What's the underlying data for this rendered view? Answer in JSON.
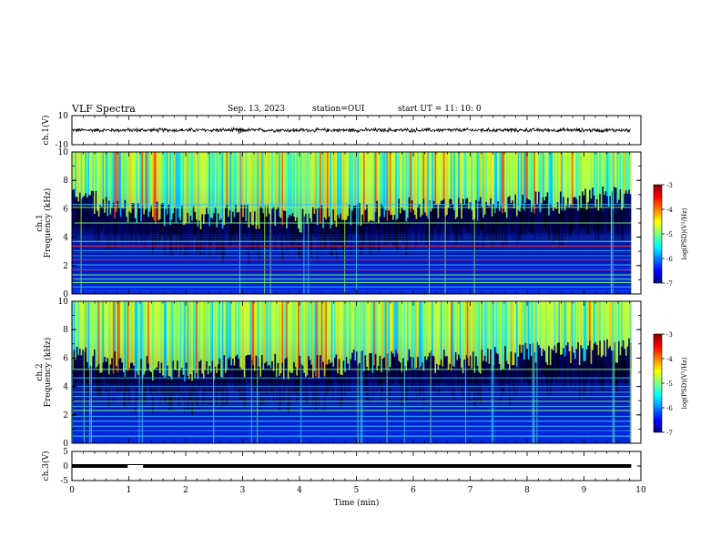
{
  "header": {
    "title": "VLF Spectra",
    "date": "Sep. 13, 2023",
    "station": "station=OUI",
    "start": "start UT =  11: 10: 0"
  },
  "chart_data": [
    {
      "type": "line",
      "id": "ch1-waveform",
      "ylabel": "ch.1(V)",
      "ylim": [
        -10,
        10
      ],
      "ytick_labels": [
        "10",
        "-10"
      ],
      "xlim": [
        0,
        10
      ],
      "data_end_min": 9.83,
      "level": 0,
      "spread": 1.0,
      "spikes": [
        {
          "t": 2.94,
          "depth": -2.6
        },
        {
          "t": 2.97,
          "depth": -1.8
        },
        {
          "t": 3.9,
          "depth": -1.4
        },
        {
          "t": 7.2,
          "depth": -1.6
        },
        {
          "t": 7.72,
          "depth": -1.4
        }
      ]
    },
    {
      "type": "heatmap",
      "id": "ch1-spectrogram",
      "ylabel": "Frequency (kHz)",
      "channel_label": "ch.1",
      "xlim": [
        0,
        10
      ],
      "ylim": [
        0,
        10
      ],
      "ytick_labels": [
        "0",
        "2",
        "4",
        "6",
        "8",
        "10"
      ],
      "data_end_min": 9.83,
      "colorbar": {
        "label": "log(PSD)(V²/Hz)",
        "range": [
          -7,
          -3
        ],
        "tick_labels": [
          "-3",
          "-4",
          "-5",
          "-6",
          "-7"
        ]
      },
      "noise_floor_profile": [
        {
          "t": 0.0,
          "khz": 6.8
        },
        {
          "t": 0.8,
          "khz": 6.0
        },
        {
          "t": 1.5,
          "khz": 5.6
        },
        {
          "t": 2.0,
          "khz": 5.3
        },
        {
          "t": 3.0,
          "khz": 5.5
        },
        {
          "t": 4.0,
          "khz": 5.2
        },
        {
          "t": 5.0,
          "khz": 5.6
        },
        {
          "t": 6.0,
          "khz": 6.0
        },
        {
          "t": 7.0,
          "khz": 5.9
        },
        {
          "t": 8.0,
          "khz": 6.3
        },
        {
          "t": 9.0,
          "khz": 6.6
        },
        {
          "t": 9.83,
          "khz": 6.8
        }
      ],
      "tone_lines_khz": [
        0.5,
        0.8,
        1.05,
        1.35,
        1.7,
        2.05,
        2.4,
        2.7,
        3.05,
        3.35,
        3.7,
        5.0,
        6.1,
        6.3
      ]
    },
    {
      "type": "heatmap",
      "id": "ch2-spectrogram",
      "ylabel": "Frequency (kHz)",
      "channel_label": "ch.2",
      "xlim": [
        0,
        10
      ],
      "ylim": [
        0,
        10
      ],
      "ytick_labels": [
        "0",
        "2",
        "4",
        "6",
        "8",
        "10"
      ],
      "data_end_min": 9.83,
      "colorbar": {
        "label": "log(PSD)(V²/Hz)",
        "range": [
          -7,
          -3
        ],
        "tick_labels": [
          "-3",
          "-4",
          "-5",
          "-6",
          "-7"
        ]
      },
      "noise_floor_profile": [
        {
          "t": 0.0,
          "khz": 6.0
        },
        {
          "t": 1.0,
          "khz": 5.4
        },
        {
          "t": 2.0,
          "khz": 5.2
        },
        {
          "t": 3.0,
          "khz": 5.5
        },
        {
          "t": 4.0,
          "khz": 5.3
        },
        {
          "t": 5.0,
          "khz": 5.8
        },
        {
          "t": 6.0,
          "khz": 5.9
        },
        {
          "t": 7.0,
          "khz": 5.7
        },
        {
          "t": 8.0,
          "khz": 6.2
        },
        {
          "t": 9.0,
          "khz": 6.4
        },
        {
          "t": 9.83,
          "khz": 6.6
        }
      ],
      "tone_lines_khz": [
        0.5,
        0.9,
        1.2,
        1.55,
        1.9,
        2.3,
        2.6,
        2.95,
        3.3,
        3.6,
        4.0,
        4.6,
        5.2
      ]
    },
    {
      "type": "line",
      "id": "ch3-waveform",
      "ylabel": "ch.3(V)",
      "ylim": [
        -5,
        5
      ],
      "ytick_labels": [
        "5",
        "0",
        "-5"
      ],
      "xlim": [
        0,
        10
      ],
      "data_end_min": 9.83,
      "level": 0,
      "spread": 0.15,
      "gaps": [
        {
          "t0": 0.98,
          "t1": 1.25,
          "level": 0.45
        }
      ]
    }
  ],
  "xaxis": {
    "label": "Time (min)",
    "ticks": [
      0,
      1,
      2,
      3,
      4,
      5,
      6,
      7,
      8,
      9,
      10
    ]
  },
  "colors": {
    "jet": [
      "#000080",
      "#0000ff",
      "#0080ff",
      "#00ffff",
      "#80ff80",
      "#ffff00",
      "#ff8000",
      "#ff0000",
      "#800000"
    ],
    "background": "#000000",
    "trace": "#000000"
  }
}
